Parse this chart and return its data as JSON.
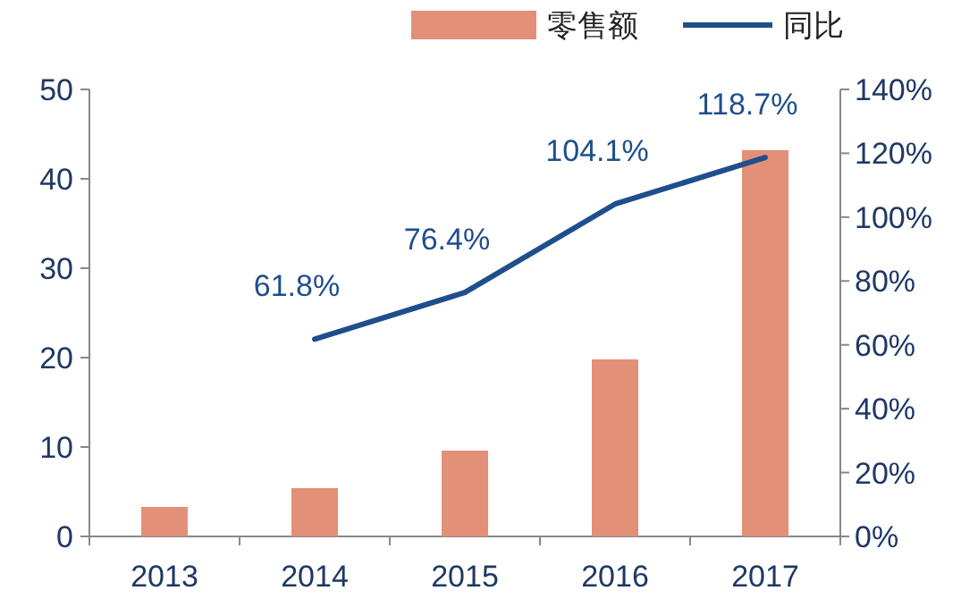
{
  "chart_data": {
    "type": "bar",
    "categories": [
      "2013",
      "2014",
      "2015",
      "2016",
      "2017"
    ],
    "series": [
      {
        "name": "零售额",
        "color": "#e39078",
        "values": [
          3.3,
          5.4,
          9.6,
          19.8,
          43.2
        ]
      },
      {
        "name": "同比",
        "type": "line",
        "axis": "y2",
        "color": "#1f4e8c",
        "values": [
          null,
          61.8,
          76.4,
          104.1,
          118.7
        ],
        "value_labels": [
          null,
          "61.8%",
          "76.4%",
          "104.1%",
          "118.7%"
        ]
      }
    ],
    "ylim": [
      0,
      50
    ],
    "yticks": [
      0,
      10,
      20,
      30,
      40,
      50
    ],
    "y2lim": [
      0,
      140
    ],
    "y2ticks": [
      {
        "value": 0,
        "label": "0%"
      },
      {
        "value": 20,
        "label": "20%"
      },
      {
        "value": 40,
        "label": "40%"
      },
      {
        "value": 60,
        "label": "60%"
      },
      {
        "value": 80,
        "label": "80%"
      },
      {
        "value": 100,
        "label": "100%"
      },
      {
        "value": 120,
        "label": "120%"
      },
      {
        "value": 140,
        "label": "140%"
      }
    ],
    "legend": "top",
    "grid": false
  }
}
